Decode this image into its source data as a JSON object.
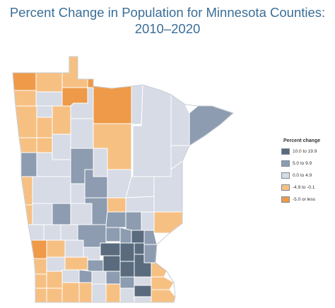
{
  "title": {
    "line1": "Percent Change in Population for Minnesota Counties:",
    "line2": "2010–2020"
  },
  "legend": {
    "title": "Percent change",
    "items": [
      {
        "label": "10.0 to 19.9",
        "color": "#5a6b7e",
        "class": "c4"
      },
      {
        "label": "5.0 to 9.9",
        "color": "#8d9cb0",
        "class": "c3"
      },
      {
        "label": "0.0 to 4.9",
        "color": "#d6dbe5",
        "class": "c2"
      },
      {
        "label": "-4.9 to -0.1",
        "color": "#f7c083",
        "class": "c1"
      },
      {
        "label": "-5.0 or less",
        "color": "#ee9a48",
        "class": "c0"
      }
    ]
  },
  "colors": {
    "border": "#ffffff",
    "outline": "#b9c0c8"
  }
}
